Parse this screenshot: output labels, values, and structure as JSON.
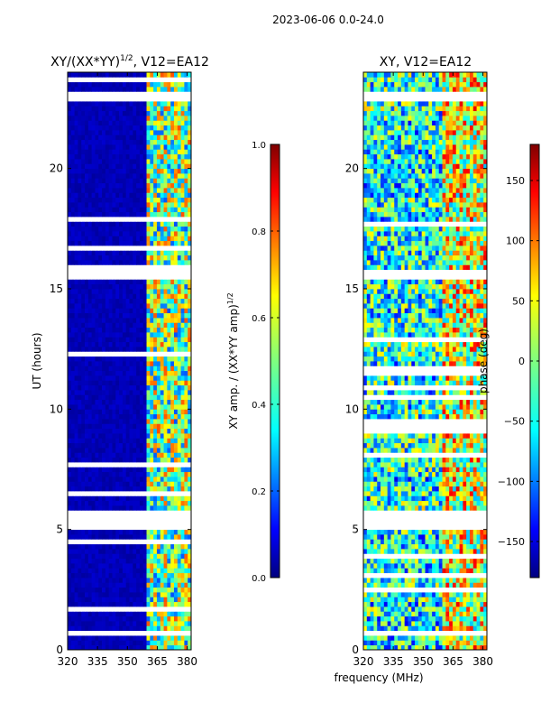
{
  "suptitle": "2023-06-06 0.0-24.0",
  "shared_xlabel": "frequency (MHz)",
  "colors": {
    "jet": [
      "#00007f",
      "#0000ff",
      "#007fff",
      "#00ffff",
      "#7fff7f",
      "#ffff00",
      "#ff7f00",
      "#ff0000",
      "#7f0000"
    ],
    "nodata": "#ffffff"
  },
  "chart_data": [
    {
      "type": "heatmap",
      "title": "XY/(XX*YY)^1/2, V12=EA12",
      "xlabel": "",
      "ylabel": "UT (hours)",
      "xlim": [
        320,
        382
      ],
      "ylim": [
        0,
        24
      ],
      "xticks": [
        320,
        335,
        350,
        365,
        380
      ],
      "yticks": [
        0,
        5,
        10,
        15,
        20
      ],
      "colorbar": {
        "label": "XY amp. / (XX*YY amp)^1/2",
        "range": [
          0.0,
          1.0
        ],
        "ticks": [
          0.0,
          0.2,
          0.4,
          0.6,
          0.8,
          1.0
        ],
        "tick_labels": [
          "0.0",
          "0.2",
          "0.4",
          "0.6",
          "0.8",
          "1.0"
        ]
      },
      "flagged_time_ranges_hours": [
        [
          5.0,
          5.7
        ],
        [
          15.5,
          15.7
        ],
        [
          22.9,
          23.2
        ]
      ],
      "band_edge_mhz": 360,
      "description_values": {
        "below_360MHz": 0.05,
        "above_360MHz_range": [
          0.2,
          0.8
        ]
      }
    },
    {
      "type": "heatmap",
      "title": "XY, V12=EA12",
      "xlabel": "frequency (MHz)",
      "ylabel": "",
      "xlim": [
        320,
        382
      ],
      "ylim": [
        0,
        24
      ],
      "xticks": [
        320,
        335,
        350,
        365,
        380
      ],
      "yticks": [
        0,
        5,
        10,
        15,
        20
      ],
      "colorbar": {
        "label": "phase (deg)",
        "range": [
          -180,
          180
        ],
        "ticks": [
          -150,
          -100,
          -50,
          0,
          50,
          100,
          150
        ],
        "tick_labels": [
          "−150",
          "−100",
          "−50",
          "0",
          "50",
          "100",
          "150"
        ]
      },
      "flagged_time_ranges_hours": [
        [
          5.0,
          5.7
        ],
        [
          15.5,
          15.7
        ],
        [
          22.9,
          23.2
        ]
      ],
      "band_edge_mhz": 360,
      "description_values": {
        "phase_range_deg": [
          -180,
          180
        ]
      }
    }
  ]
}
